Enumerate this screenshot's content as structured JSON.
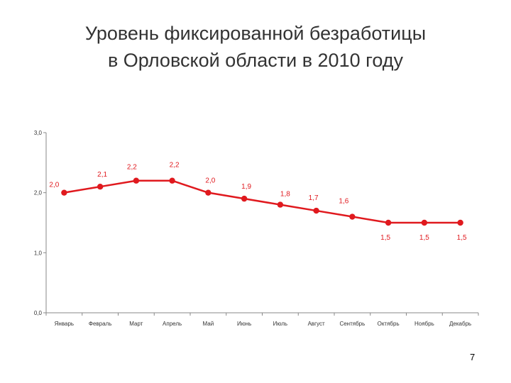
{
  "slide": {
    "title_line1": "Уровень фиксированной безработицы",
    "title_line2": "в Орловской области в 2010 году",
    "page_number": "7"
  },
  "colors": {
    "series": "#e0191e",
    "axis": "#888888",
    "text": "#333333"
  },
  "chart_data": {
    "type": "line",
    "categories": [
      "Январь",
      "Февраль",
      "Март",
      "Апрель",
      "Май",
      "Июнь",
      "Июль",
      "Август",
      "Сентябрь",
      "Октябрь",
      "Ноябрь",
      "Декабрь"
    ],
    "series": [
      {
        "values": [
          2.0,
          2.1,
          2.2,
          2.2,
          2.0,
          1.9,
          1.8,
          1.7,
          1.6,
          1.5,
          1.5,
          1.5
        ],
        "labels": [
          "2,0",
          "2,1",
          "2,2",
          "2,2",
          "2,0",
          "1,9",
          "1,8",
          "1,7",
          "1,6",
          "1,5",
          "1,5",
          "1,5"
        ]
      }
    ],
    "yticks": [
      0,
      1,
      2,
      3
    ],
    "ytick_labels": [
      "0,0",
      "1,0",
      "2,0",
      "3,0"
    ],
    "ylim": [
      0,
      3
    ],
    "grid": false,
    "legend": "none"
  }
}
